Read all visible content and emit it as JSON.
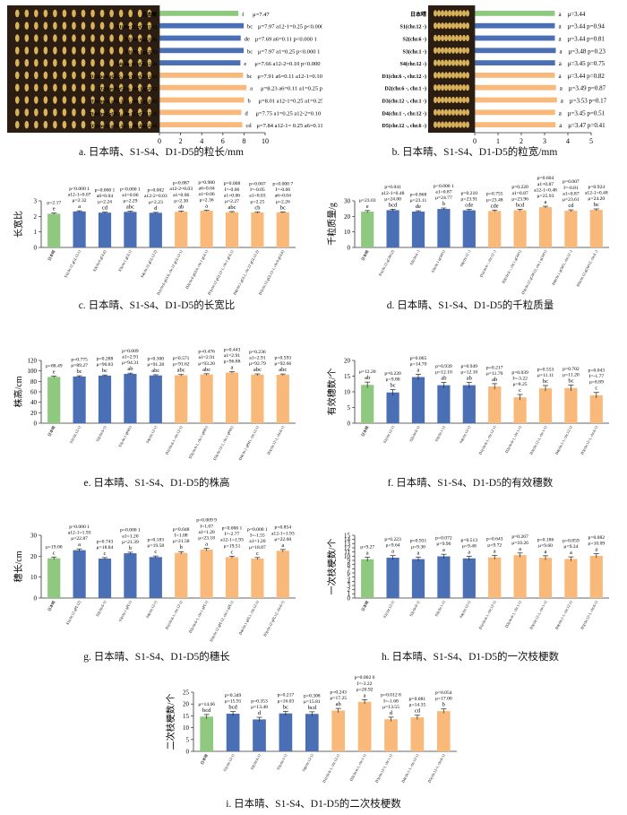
{
  "captions": {
    "a": "a.  日本晴、S1-S4、D1-D5的粒长/mm",
    "b": "b.  日本晴、S1-S4、D1-D5的粒宽/mm",
    "c": "c.  日本晴、S1-S4、D1-D5的长宽比",
    "d": "d.  日本晴、S1-S4、D1-D5的千粒质量",
    "e": "e.  日本晴、S1-S4、D1-D5的株高",
    "f": "f.  日本晴、S1-S4、D1-D5的有效穗数",
    "g": "g.  日本晴、S1-S4、D1-D5的穗长",
    "h": "h.  日本晴、S1-S4、D1-D5的一次枝梗数",
    "i": "i.  日本晴、S1-S4、D1-D5的二次枝梗数"
  },
  "colors": {
    "control": "#8fc97f",
    "single": "#4a6fb5",
    "double": "#f9b97a",
    "photo_bg": "#2b1d12",
    "grain": "#d9b25a"
  },
  "chart_data": [
    {
      "id": "a",
      "type": "bar",
      "orientation": "horizontal",
      "has_photo": true,
      "categories": [
        "日本晴",
        "S1(chr.12 gGL12-1)",
        "S2(chr.6 gGL6)",
        "S3(chr.1 gGL1)",
        "S4(chr.12 gGL12-2)",
        "D1(chr.6 gGL6, chr.12 gGL12-1)",
        "D2(chr.6 gGL6, chr.1 gGL1)",
        "D3(chr.12 gGL12-1, chr.1 gGL1)",
        "D4(chr.1 gGL1, chr.12 gGL12-2)",
        "D5(chr.12 gGL12-1, chr.6 gGL6)"
      ],
      "groups": [
        "control",
        "single",
        "single",
        "single",
        "single",
        "double",
        "double",
        "double",
        "double",
        "double"
      ],
      "values": [
        7.47,
        7.97,
        7.69,
        7.97,
        7.66,
        7.91,
        8.23,
        8.01,
        7.75,
        7.84
      ],
      "letters": [
        "f",
        "bc",
        "de",
        "bc",
        "e",
        "bc",
        "a",
        "b",
        "d",
        "cd"
      ],
      "stats": [
        "μ=7.47",
        "μ=7.97 a12-1=0.25 p<0.000 1",
        "μ=7.69 a6=0.11 p<0.000 1",
        "μ=7.97 a1=0.25 p<0.000 1",
        "μ=7.66 a12-2=0.10 p<0.000 1",
        "μ=7.91 a6=0.11 a12-1=0.10 p=0.70",
        "μ=8.23 a6=0.11 a1=0.25 p=0.86",
        "μ=8.01 a12-1=0.25 a1=0.25 I=-0.23 p<0.000 1",
        "μ=7.75 a1=0.25 a12-2=0.10 I=-0.20 p<0.000 1",
        "μ=7.84 a12-1= 0.25 a6=0.11 I=-0.18 p=0.001 4"
      ],
      "xlim": [
        0,
        10
      ],
      "xticks": [
        0,
        2,
        4,
        6,
        8,
        10
      ]
    },
    {
      "id": "b",
      "type": "bar",
      "orientation": "horizontal",
      "has_photo": true,
      "categories": [
        "日本晴",
        "S1(chr.12 -)",
        "S2(chr.6 -)",
        "S3(chr.1 -)",
        "S4(chr.12 -)",
        "D1(chr.6 -, chr.12 -)",
        "D2(chr.6 -, chr.1 -)",
        "D3(chr.12 -, chr.1 -)",
        "D4(chr.1 -, chr.12 -)",
        "D5(chr.12 -, chr.6 -)"
      ],
      "groups": [
        "control",
        "single",
        "single",
        "single",
        "single",
        "double",
        "double",
        "double",
        "double",
        "double"
      ],
      "values": [
        3.44,
        3.44,
        3.44,
        3.48,
        3.45,
        3.44,
        3.49,
        3.53,
        3.45,
        3.47
      ],
      "letters": [
        "a",
        "a",
        "a",
        "a",
        "a",
        "a",
        "a",
        "a",
        "a",
        "a"
      ],
      "stats": [
        "μ=3.44",
        "μ=3.44 p=0.94",
        "μ=3.44 p=0.81",
        "μ=3.48 p=0.23",
        "μ=3.45 p=0.75",
        "μ=3.44 p=0.82",
        "μ=3.49 p=0.87",
        "μ=3.53 p=0.17",
        "μ=3.45 p=0.51",
        "μ=3.47 p=0.41"
      ],
      "xlim": [
        0,
        5
      ],
      "xticks": [
        0,
        1,
        2,
        3,
        4,
        5
      ]
    },
    {
      "id": "c",
      "type": "bar",
      "orientation": "vertical",
      "ylabel": "长宽比",
      "categories": [
        "日本晴",
        "S1(chr.12 gGL12-1)",
        "S2(chr.6 gGL6)",
        "S3(chr.1 gGL1)",
        "S4(chr.12 gGL12-2)",
        "D1(chr.6 gGL6, chr.12 gGL12-1)",
        "D2(chr.6 gGL6, chr.1 gGL1)",
        "D3(chr.12 gGL12-1, chr.1 gGL1)",
        "D4(chr.1 gGL1, chr.12 gGL12-2)",
        "D5(chr.12 gGL12-1, chr.6 gGL6)"
      ],
      "groups": [
        "control",
        "single",
        "single",
        "single",
        "single",
        "double",
        "double",
        "double",
        "double",
        "double"
      ],
      "values": [
        2.17,
        2.32,
        2.24,
        2.29,
        2.23,
        2.3,
        2.36,
        2.27,
        2.25,
        2.26
      ],
      "errors": [
        0.04,
        0.04,
        0.03,
        0.04,
        0.03,
        0.04,
        0.03,
        0.04,
        0.04,
        0.03
      ],
      "letters": [
        "e",
        "a",
        "cd",
        "abc",
        "d",
        "ab",
        "a",
        "abc",
        "cb",
        "bc"
      ],
      "stats": [
        [
          "μ=2.17"
        ],
        [
          "p<0.000 1",
          "a12-1=0.07",
          "μ=2.32"
        ],
        [
          "p=0.000 1",
          "a6=0.04",
          "μ=2.24"
        ],
        [
          "p<0.000 1",
          "a1=0.06",
          "μ=2.29"
        ],
        [
          "p=0.002",
          "a12-2=0.03",
          "μ=2.23"
        ],
        [
          "p=0.887",
          "a12-2=0.03",
          "a1=0.06",
          "μ=2.30"
        ],
        [
          "p=0.980",
          "a6=0.04",
          "a1=0.06",
          "μ=2.36"
        ],
        [
          "p=0.008",
          "I=-0.06",
          "a1=0.06",
          "μ=2.27"
        ],
        [
          "p=0.007",
          "I=-0.05",
          "a1=0.03",
          "μ=2.25"
        ],
        [
          "p=0.000 7",
          "I=-0.06",
          "a6=0.04",
          "μ=2.26"
        ]
      ],
      "ylim": [
        0,
        3
      ],
      "yticks": [
        0,
        1,
        2,
        3
      ]
    },
    {
      "id": "d",
      "type": "bar",
      "orientation": "vertical",
      "ylabel": "千粒质量/g",
      "categories": [
        "日本晴",
        "S1(chr.12 qGW12)",
        "S2(chr.6 -)",
        "S3(chr.1 qGW1)",
        "S4(chr.12 -)",
        "D1(chr.6 -, chr.12 -)",
        "D2(chr.6 -, chr.1 qGW1)",
        "D3(chr.12 qGW12, chr.1 qGW1)",
        "D4(chr.1 qGW1, chr.12 -)",
        "D5(chr.12 qGW12, chr.6 -)"
      ],
      "groups": [
        "control",
        "single",
        "single",
        "single",
        "single",
        "double",
        "double",
        "double",
        "double",
        "double"
      ],
      "values": [
        23.03,
        24.0,
        23.11,
        24.77,
        23.91,
        23.48,
        23.96,
        25.93,
        23.61,
        24.2
      ],
      "errors": [
        0.7,
        0.6,
        0.5,
        0.6,
        0.6,
        0.6,
        0.6,
        0.6,
        0.6,
        0.6
      ],
      "letters": [
        "e",
        "bcd",
        "de",
        "b",
        "cde",
        "cde",
        "bcd",
        "a",
        "cd",
        "bc"
      ],
      "stats": [
        [
          "μ=23.03"
        ],
        [
          "p=0.041",
          "a12-1=0.48",
          "μ=24.00"
        ],
        [
          "p=0.868",
          "μ=23.11"
        ],
        [
          "p<0.000 1",
          "a1=0.87",
          "μ=24.77"
        ],
        [
          "p=0.210",
          "μ=23.91"
        ],
        [
          "p=0.755",
          "μ=23.48"
        ],
        [
          "p=0.220",
          "a1=0.87",
          "μ=23.96"
        ],
        [
          "p=0.604",
          "a1=0.87",
          "a12-1=0.48",
          "μ=25.93"
        ],
        [
          "p=0.007",
          "I=-0.81",
          "a1=0.87",
          "μ=23.61"
        ],
        [
          "p=0.924",
          "a12-1=0.48",
          "μ=24.20"
        ]
      ],
      "ylim": [
        0,
        30
      ],
      "yticks": [
        0,
        10,
        20,
        30
      ]
    },
    {
      "id": "e",
      "type": "bar",
      "orientation": "vertical",
      "ylabel": "株高/cm",
      "categories": [
        "日本晴",
        "S1(chr.12-1)",
        "S2(chr.6-1)",
        "S3(chr.1 qPH1)",
        "S4(chr.12-1)",
        "D1(chr.6-1, chr.12-1)",
        "D2(chr.6-1, chr.1 qPH1)",
        "D3(chr.12-1, chr.1 qPH1)",
        "D4(chr.1 qPH1, chr.12-1)",
        "D5(chr.12-1, chr.6-1)"
      ],
      "groups": [
        "control",
        "single",
        "single",
        "single",
        "single",
        "double",
        "double",
        "double",
        "double",
        "double"
      ],
      "values": [
        88.49,
        89.27,
        90.83,
        94.31,
        91.28,
        91.62,
        93.2,
        96.88,
        92.79,
        92.66
      ],
      "errors": [
        1.5,
        1.4,
        1.4,
        1.4,
        1.4,
        1.4,
        1.4,
        1.4,
        1.4,
        1.4
      ],
      "letters": [
        "e",
        "bc",
        "bc",
        "ab",
        "abc",
        "abc",
        "abc",
        "a",
        "abc",
        "abc"
      ],
      "stats": [
        [
          "μ=88.49"
        ],
        [
          "p=0.775",
          "μ=89.27"
        ],
        [
          "p=0.288",
          "μ=90.83"
        ],
        [
          "p=0.009",
          "a1=2.91",
          "μ=94.31"
        ],
        [
          "p=0.300",
          "μ=91.28"
        ],
        [
          "p=0.571",
          "μ=91.62"
        ],
        [
          "p=0.476",
          "a1=2.91",
          "μ=93.20"
        ],
        [
          "p=0.443",
          "a1=2.91",
          "μ=96.88"
        ],
        [
          "p=0.236",
          "a1=2.91",
          "μ=92.79"
        ],
        [
          "p=0.593",
          "μ=92.66"
        ]
      ],
      "ylim": [
        0,
        120
      ],
      "yticks": [
        0,
        20,
        40,
        60,
        80,
        100,
        120
      ]
    },
    {
      "id": "f",
      "type": "bar",
      "orientation": "vertical",
      "ylabel": "有效穗数/个",
      "categories": [
        "日本晴",
        "S1(chr.12-1)",
        "S2(chr.6-1)",
        "S3(chr.1-1)",
        "S4(chr.12-1)",
        "D1(chr.6-1, chr.12-1)",
        "D2(chr.6-1, chr.1-1)",
        "D3(chr.12-1, chr.1-1)",
        "D4(chr.1-1, chr.12-1)",
        "D5(chr.12-1, chr.6-1)"
      ],
      "groups": [
        "control",
        "single",
        "single",
        "single",
        "single",
        "double",
        "double",
        "double",
        "double",
        "double"
      ],
      "values": [
        12.2,
        9.8,
        14.7,
        12.1,
        12.1,
        11.7,
        8.25,
        11.11,
        11.2,
        8.89
      ],
      "errors": [
        0.9,
        0.9,
        0.9,
        0.9,
        0.9,
        0.9,
        0.9,
        0.9,
        0.9,
        0.9
      ],
      "letters": [
        "ab",
        "bc",
        "a",
        "ab",
        "ab",
        "ab",
        "c",
        "bc",
        "bc",
        "c"
      ],
      "stats": [
        [
          "μ=12.20"
        ],
        [
          "p=0.220",
          "μ=9.80"
        ],
        [
          "p=0.065",
          "μ=14.70"
        ],
        [
          "p=0.939",
          "μ=12.10"
        ],
        [
          "p=0.949",
          "μ=12.10"
        ],
        [
          "p=0.217",
          "μ=11.70"
        ],
        [
          "p=0.039",
          "I=-3.22",
          "μ=8.25"
        ],
        [
          "p=0.553",
          "μ=11.11"
        ],
        [
          "p=0.702",
          "μ=11.20"
        ],
        [
          "p=0.043",
          "I=-1.77",
          "μ=8.89"
        ]
      ],
      "ylim": [
        0,
        20
      ],
      "yticks": [
        0,
        5,
        10,
        15,
        20
      ]
    },
    {
      "id": "g",
      "type": "bar",
      "orientation": "vertical",
      "ylabel": "穗长/cm",
      "categories": [
        "日本晴",
        "S1(chr.12 qPL12)",
        "S2(chr.6-1)",
        "S3(chr.1 qPL1)",
        "S4(chr.12-1)",
        "D1(chr.6-1, chr.12-1)",
        "D2(chr.6-1, chr.1 qPL1)",
        "D3(chr.12 qPL12, chr.1 qPL1)",
        "D4(chr.1 qPL1, chr.12-1)",
        "D5(chr.12 qPL12, chr.6-1)"
      ],
      "groups": [
        "control",
        "single",
        "single",
        "single",
        "single",
        "double",
        "double",
        "double",
        "double",
        "double"
      ],
      "values": [
        19.0,
        22.87,
        18.84,
        21.39,
        19.58,
        21.58,
        23.18,
        19.51,
        18.87,
        22.6
      ],
      "errors": [
        0.6,
        0.6,
        0.5,
        0.5,
        0.5,
        0.6,
        0.6,
        0.5,
        0.5,
        0.6
      ],
      "letters": [
        "c",
        "a",
        "c",
        "b",
        "c",
        "b",
        "a",
        "c",
        "c",
        "a"
      ],
      "stats": [
        [
          "μ=19.00"
        ],
        [
          "p<0.000 1",
          "a12-1=1.93",
          "μ=22.87"
        ],
        [
          "p=0.743",
          "μ=18.84"
        ],
        [
          "p=0.000 1",
          "a1=1.20",
          "μ=21.39"
        ],
        [
          "p=0.183",
          "μ=19.58"
        ],
        [
          "p=0.048",
          "I=1.08",
          "μ=21.58"
        ],
        [
          "p=0.009 9",
          "I=1.07",
          "a1=1.20",
          "μ=23.18"
        ],
        [
          "p<0.000 1",
          "I=-2.77",
          "a12-1=1.93",
          "μ=19.51"
        ],
        [
          "p=0.000 1",
          "I=-1.55",
          "a1=1.20",
          "μ=18.87"
        ],
        [
          "p=0.854",
          "a12-1=1.93",
          "μ=22.60"
        ]
      ],
      "ylim": [
        0,
        30
      ],
      "yticks": [
        0,
        10,
        20,
        30
      ]
    },
    {
      "id": "h",
      "type": "bar",
      "orientation": "vertical",
      "ylabel": "一次枝梗数/个",
      "categories": [
        "日本晴",
        "S1(chr.12-1)",
        "S2(chr.6-1)",
        "S3(chr.1-1)",
        "S4(chr.12-1)",
        "D1(chr.6-1, chr.12-1)",
        "D2(chr.6-1, chr.1-1)",
        "D3(chr.12-1, chr.1-1)",
        "D4(chr.1-1, chr.12-1)",
        "D5(chr.12-1, chr.6-1)"
      ],
      "groups": [
        "control",
        "single",
        "single",
        "single",
        "single",
        "double",
        "double",
        "double",
        "double",
        "double"
      ],
      "values": [
        9.27,
        9.64,
        9.3,
        9.96,
        9.48,
        9.72,
        10.26,
        9.6,
        9.34,
        10.09
      ],
      "errors": [
        0.5,
        0.5,
        0.5,
        0.5,
        0.5,
        0.5,
        0.5,
        0.5,
        0.5,
        0.5
      ],
      "letters": [
        "a",
        "a",
        "a",
        "a",
        "a",
        "a",
        "a",
        "a",
        "a",
        "a"
      ],
      "stats": [
        [
          "μ=9.27"
        ],
        [
          "p=0.223",
          "μ=9.64"
        ],
        [
          "p=0.931",
          "μ=9.30"
        ],
        [
          "p=0.072",
          "μ=9.96"
        ],
        [
          "p=0.513",
          "μ=9.48"
        ],
        [
          "p=0.643",
          "μ=9.72"
        ],
        [
          "p=0.267",
          "μ=10.26"
        ],
        [
          "p=0.186",
          "μ=9.60"
        ],
        [
          "p=0.859",
          "μ=9.34"
        ],
        [
          "p=0.082",
          "μ=10.09"
        ]
      ],
      "ylim": [
        0,
        15
      ],
      "yticks": [
        0,
        1,
        2,
        3,
        4,
        5,
        6,
        7,
        8,
        9,
        10,
        11,
        12,
        13,
        14,
        15
      ]
    },
    {
      "id": "i",
      "type": "bar",
      "orientation": "vertical",
      "ylabel": "二次枝梗数/个",
      "categories": [
        "日本晴",
        "S1(chr.12-1)",
        "S2(chr.6-1)",
        "S3(chr.1-1)",
        "S4(chr.12-1)",
        "D1(chr.6-1, chr.12-1)",
        "D2(chr.6-1, chr.1-1)",
        "D3(chr.12-1, chr.1-1)",
        "D4(chr.1-1, chr.12-1)",
        "D5(chr.12-1, chr.6-1)"
      ],
      "groups": [
        "control",
        "single",
        "single",
        "single",
        "single",
        "double",
        "double",
        "double",
        "double",
        "double"
      ],
      "values": [
        14.66,
        15.91,
        13.48,
        16.03,
        15.81,
        17.25,
        20.92,
        13.55,
        14.35,
        17.0
      ],
      "errors": [
        0.9,
        0.9,
        0.9,
        0.9,
        0.9,
        0.9,
        0.9,
        0.9,
        0.9,
        0.9
      ],
      "letters": [
        "bcd",
        "bcd",
        "d",
        "bc",
        "bcd",
        "ab",
        "a",
        "d",
        "cd",
        "b"
      ],
      "stats": [
        [
          "μ=14.66"
        ],
        [
          "p=0.349",
          "μ=15.91"
        ],
        [
          "p=0.353",
          "μ=13.48"
        ],
        [
          "p=0.217",
          "μ=16.03"
        ],
        [
          "p=0.308",
          "μ=15.81"
        ],
        [
          "p=0.243",
          "μ=17.25"
        ],
        [
          "p=0.002 6",
          "I=-3.22",
          "μ=20.92"
        ],
        [
          "p=0.012 8",
          "I=-1.68",
          "μ=13.55"
        ],
        [
          "p=0.081",
          "μ=14.35"
        ],
        [
          "p=0.054",
          "μ=17.00"
        ]
      ],
      "ylim": [
        0,
        25
      ],
      "yticks": [
        0,
        5,
        10,
        15,
        20,
        25
      ]
    }
  ]
}
